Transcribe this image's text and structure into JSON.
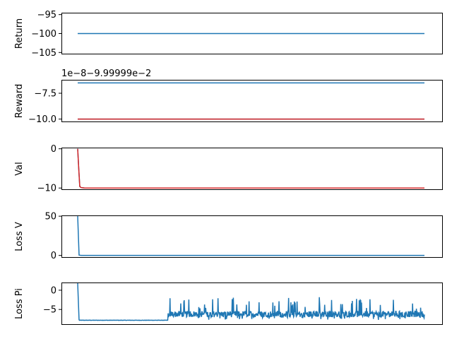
{
  "chart_data": [
    {
      "type": "line",
      "ylabel": "Return",
      "yticks": [
        -95,
        -100,
        -105
      ],
      "ylim": [
        -105.5,
        -94.5
      ],
      "series": [
        {
          "color": "#1f77b4",
          "x": [
            0,
            1
          ],
          "y": [
            -100,
            -100
          ]
        }
      ]
    },
    {
      "type": "line",
      "ylabel": "Reward",
      "offset_text": "1e−8−9.99999e−2",
      "yticks": [
        -7.5,
        -10.0
      ],
      "ylim": [
        -10.3,
        -6.2
      ],
      "series": [
        {
          "color": "#1f77b4",
          "x": [
            0,
            1
          ],
          "y": [
            -6.5,
            -6.5
          ]
        },
        {
          "color": "#1f77b4",
          "x": [
            0,
            1
          ],
          "y": [
            -10.0,
            -10.0
          ]
        },
        {
          "color": "#d62728",
          "x": [
            0,
            1
          ],
          "y": [
            -10.0,
            -10.0
          ]
        }
      ]
    },
    {
      "type": "line",
      "ylabel": "Val",
      "yticks": [
        0,
        -10
      ],
      "ylim": [
        -10.5,
        0.3
      ],
      "series": [
        {
          "color": "#1f77b4",
          "x": [
            0,
            0.003,
            0.006,
            0.01,
            0.02,
            0.05,
            1
          ],
          "y": [
            0,
            -5,
            -9.6,
            -9.9,
            -10,
            -10,
            -10
          ]
        },
        {
          "color": "#d62728",
          "x": [
            0,
            0.003,
            0.006,
            0.01,
            0.02,
            0.05,
            1
          ],
          "y": [
            0,
            -5,
            -9.6,
            -9.9,
            -10,
            -10,
            -10
          ]
        }
      ]
    },
    {
      "type": "line",
      "ylabel": "Loss V",
      "yticks": [
        50,
        0
      ],
      "ylim": [
        -3,
        51
      ],
      "series": [
        {
          "color": "#1f77b4",
          "x": [
            0,
            0.004,
            0.01,
            1
          ],
          "y": [
            50,
            0.4,
            0,
            0
          ]
        }
      ]
    },
    {
      "type": "line",
      "ylabel": "Loss Pi",
      "yticks": [
        0,
        -5
      ],
      "ylim": [
        -9,
        2
      ],
      "series": [
        {
          "color": "#1f77b4",
          "noisy": true,
          "start": [
            0,
            1.8
          ],
          "drop_at": 0.004,
          "flat_level": -7.8,
          "flat_until": 0.26,
          "noise_level": -6.2
        }
      ]
    }
  ]
}
